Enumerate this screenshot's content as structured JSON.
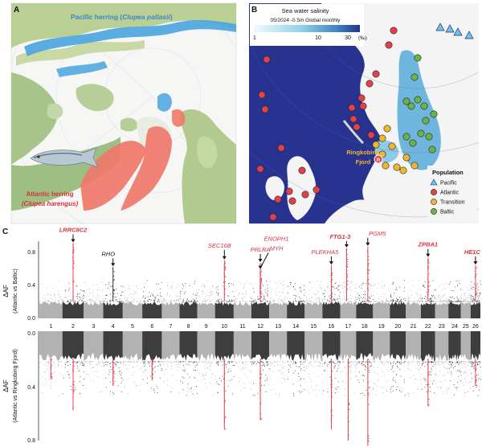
{
  "panels": {
    "a": {
      "letter": "A",
      "pacific_label_prefix": "Pacific herring (",
      "pacific_label_species": "Clupea pallasii",
      "pacific_label_suffix": ")",
      "atlantic_label_line1": "Atlantic herring",
      "atlantic_label_line2": "(Clupea harengus)",
      "colors": {
        "pacific": "#4aa3df",
        "atlantic": "#f0786a",
        "land": "#a9c98f",
        "sea": "#ffffff"
      }
    },
    "b": {
      "letter": "B",
      "salinity_title": "Sea water salinity",
      "salinity_meta": "05/2024   -0.5m   Global monthly",
      "salinity_ticks": [
        "1",
        "10",
        "30"
      ],
      "salinity_unit": "(‰)",
      "ringkobing_line1": "Ringkobing",
      "ringkobing_line2": "Fjord",
      "ringkobing_marker": "R",
      "legend_title": "Population",
      "legend": [
        {
          "label": "Pacific",
          "color": "#6ec3e8",
          "shape": "triangle"
        },
        {
          "label": "Atlantic",
          "color": "#e0414b",
          "shape": "circle"
        },
        {
          "label": "Transition",
          "color": "#f2b531",
          "shape": "circle"
        },
        {
          "label": "Baltic",
          "color": "#6ab34a",
          "shape": "circle"
        }
      ],
      "colors": {
        "ocean": "#27338f",
        "baltic": "#6fb6de",
        "land": "#f4f4f4"
      }
    },
    "c": {
      "letter": "C"
    }
  },
  "chart_data": [
    {
      "type": "scatter",
      "title": "",
      "ylabel": "ΔAF",
      "ylabel_sub": "(Atlantic vs Baltic)",
      "yticks": [
        "0.0",
        "0.4",
        "0.8"
      ],
      "ylim": [
        0,
        0.9
      ],
      "x_chromosomes": [
        "1",
        "2",
        "3",
        "4",
        "5",
        "6",
        "7",
        "8",
        "9",
        "10",
        "11",
        "12",
        "13",
        "14",
        "15",
        "16",
        "17",
        "18",
        "19",
        "20",
        "21",
        "22",
        "23",
        "24",
        "25",
        "26"
      ],
      "annotations": [
        {
          "label": "LRRC8C2",
          "chrom": 2,
          "y": 0.88,
          "color": "#d8323c",
          "bold": true,
          "italic": true
        },
        {
          "label": "RHO",
          "chrom": 4,
          "y": 0.6,
          "color": "#111111",
          "bold": false,
          "italic": true
        },
        {
          "label": "SEC16B",
          "chrom": 10,
          "y": 0.68,
          "color": "#d8323c",
          "bold": false,
          "italic": true
        },
        {
          "label": "PRLRA",
          "chrom": 12,
          "y": 0.65,
          "color": "#d8323c",
          "bold": false,
          "italic": true
        },
        {
          "label": "ENOPH1",
          "chrom": 12,
          "y": 0.57,
          "color": "#d8323c",
          "bold": false,
          "italic": true
        },
        {
          "label": "MYH",
          "chrom": 12,
          "y": 0.57,
          "color": "#d8323c",
          "bold": false,
          "italic": true
        },
        {
          "label": "PLEKHA5",
          "chrom": 16,
          "y": 0.62,
          "color": "#d8323c",
          "bold": false,
          "italic": true
        },
        {
          "label": "FTG1-3",
          "chrom": 17,
          "y": 0.82,
          "color": "#d8323c",
          "bold": true,
          "italic": true
        },
        {
          "label": "PGM5",
          "chrom": 18,
          "y": 0.84,
          "color": "#d8323c",
          "bold": false,
          "italic": true
        },
        {
          "label": "ZPBA1",
          "chrom": 22,
          "y": 0.71,
          "color": "#d8323c",
          "bold": true,
          "italic": true
        },
        {
          "label": "HE1C",
          "chrom": 26,
          "y": 0.62,
          "color": "#d8323c",
          "bold": true,
          "italic": true
        }
      ],
      "colors": {
        "odd": "#b2b2b2",
        "even": "#3d3d3d",
        "outlier": "#e0414b"
      }
    },
    {
      "type": "scatter",
      "title": "",
      "ylabel": "ΔAF",
      "ylabel_sub": "(Atlantic vs Ringkobing Fjord)",
      "yticks": [
        "0.0",
        "0.4",
        "0.8"
      ],
      "ylim": [
        0,
        0.85
      ],
      "inverted": true,
      "peaks": [
        {
          "chrom": 1,
          "y": 0.35
        },
        {
          "chrom": 2,
          "y": 0.58
        },
        {
          "chrom": 4,
          "y": 0.4
        },
        {
          "chrom": 6,
          "y": 0.36
        },
        {
          "chrom": 10,
          "y": 0.72
        },
        {
          "chrom": 12,
          "y": 0.65
        },
        {
          "chrom": 16,
          "y": 0.72
        },
        {
          "chrom": 17,
          "y": 0.8
        },
        {
          "chrom": 18,
          "y": 0.84
        },
        {
          "chrom": 22,
          "y": 0.55
        },
        {
          "chrom": 26,
          "y": 0.4
        }
      ],
      "colors": {
        "odd": "#b2b2b2",
        "even": "#3d3d3d",
        "outlier": "#e0414b"
      }
    }
  ]
}
